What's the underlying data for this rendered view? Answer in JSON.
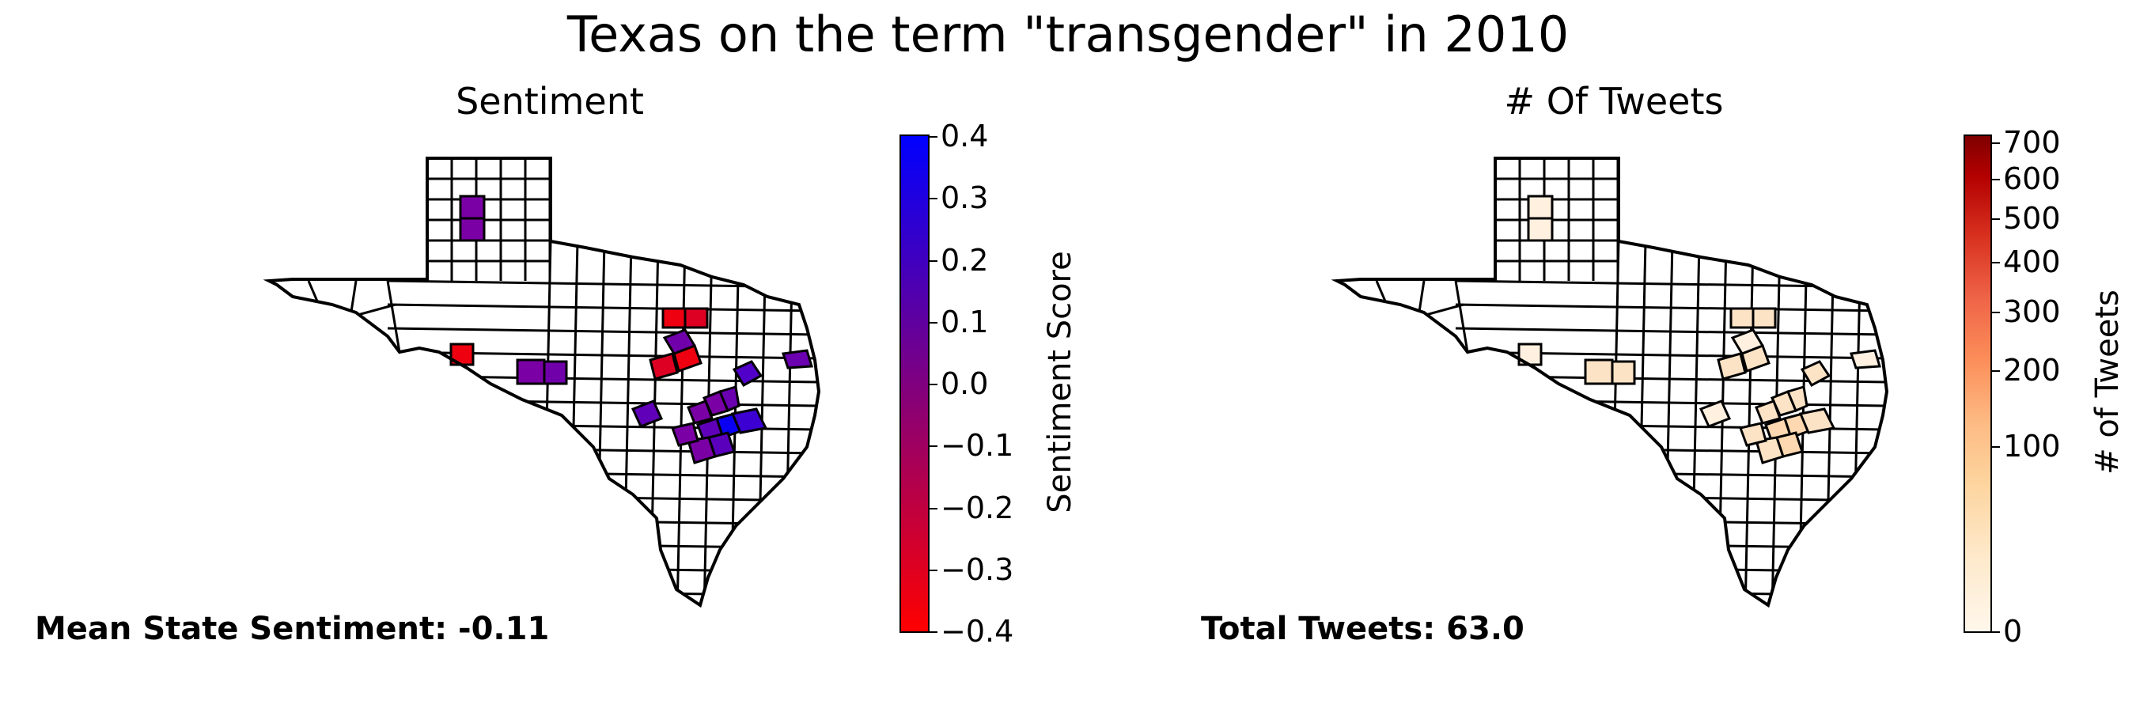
{
  "figure": {
    "title": "Texas on the term \"transgender\" in 2010"
  },
  "sentiment_panel": {
    "title": "Sentiment",
    "stat_text": "Mean State Sentiment: -0.11",
    "colorbar": {
      "label": "Sentiment Score",
      "ticks": [
        "0.4",
        "0.3",
        "0.2",
        "0.1",
        "0.0",
        "−0.1",
        "−0.2",
        "−0.3",
        "−0.4"
      ],
      "range": [
        -0.4,
        0.4
      ],
      "color_low": "#ff0000",
      "color_high": "#0000ff"
    }
  },
  "tweets_panel": {
    "title": "# Of Tweets",
    "stat_text": "Total Tweets: 63.0",
    "colorbar": {
      "label": "# of Tweets",
      "ticks": [
        "700",
        "600",
        "500",
        "400",
        "300",
        "200",
        "100",
        "0"
      ],
      "scale": "sqrt",
      "range": [
        0,
        700
      ],
      "colormap": "Oranges"
    }
  }
}
